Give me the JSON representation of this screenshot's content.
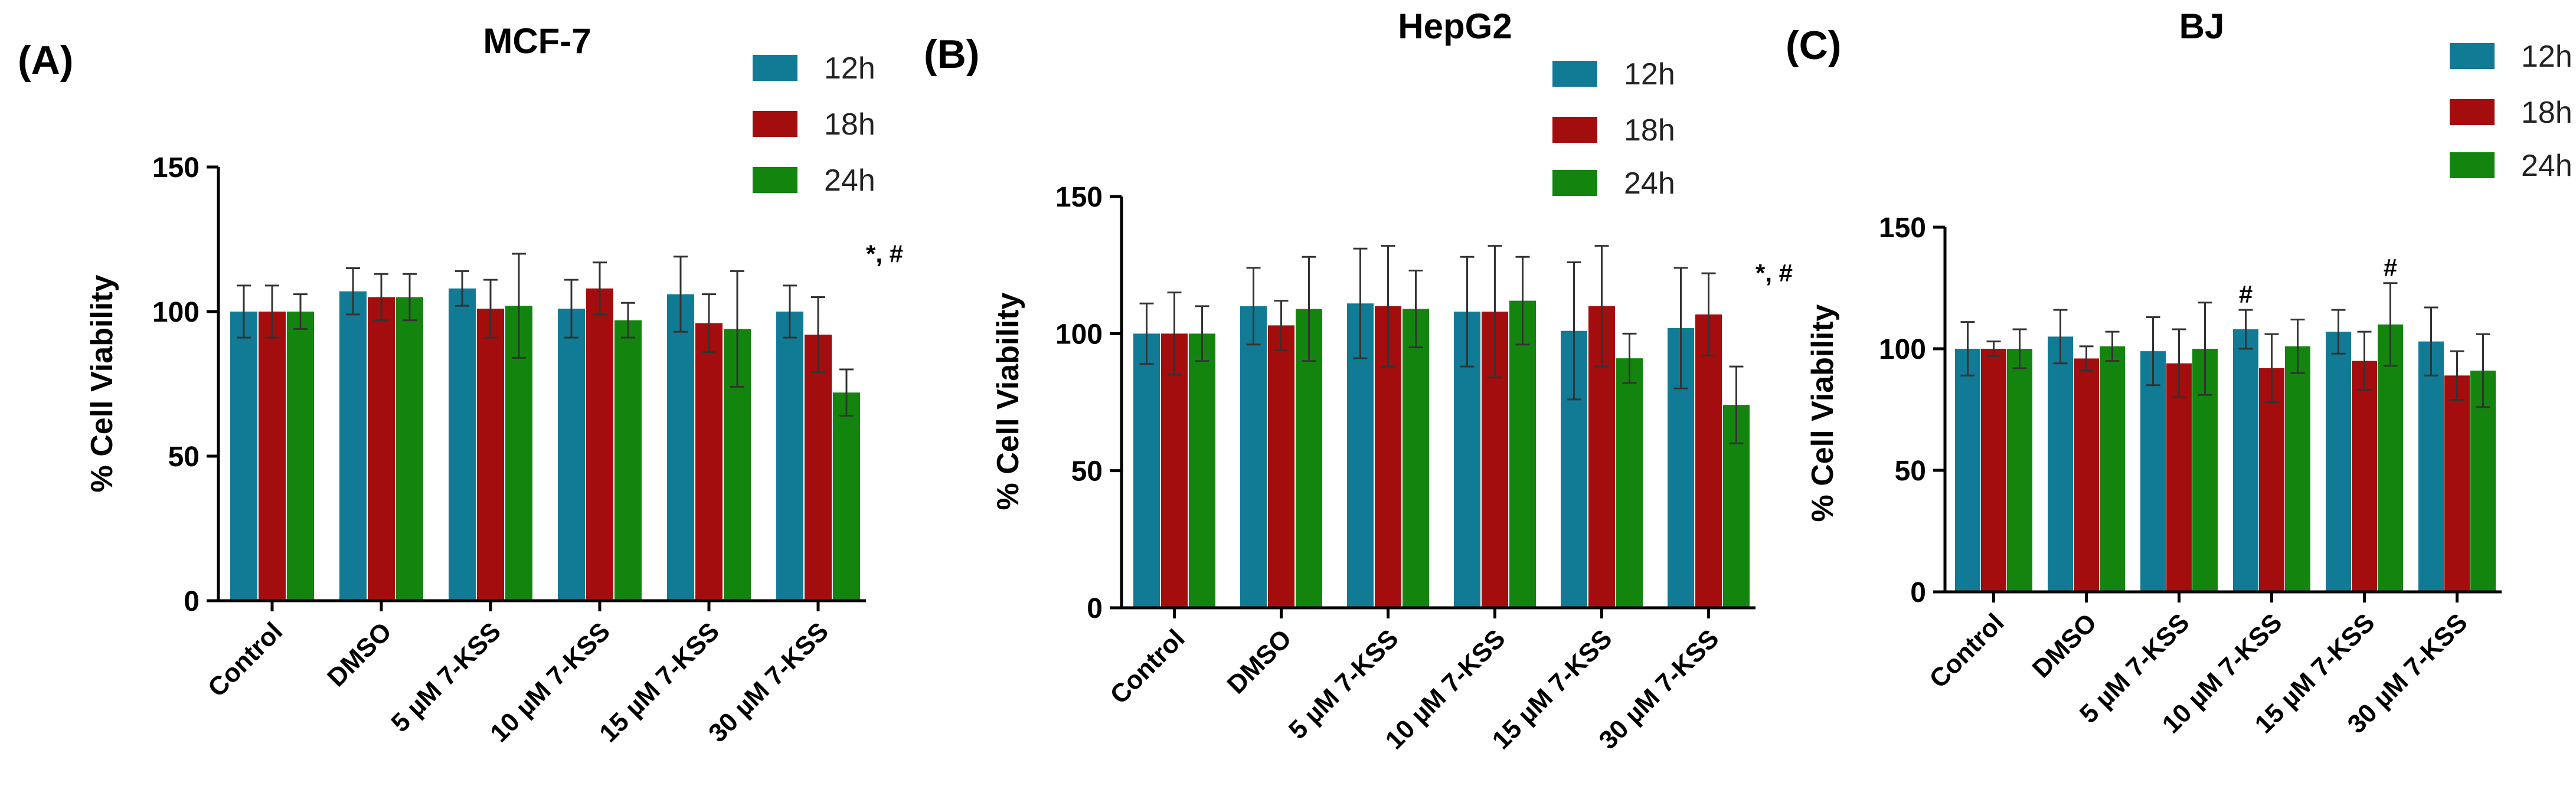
{
  "figure": {
    "series_colors": {
      "12h": "#117a95",
      "18h": "#a30d0d",
      "24h": "#13850f"
    },
    "axis_color": "#000000",
    "error_bar_color": "#333333"
  },
  "chart_data": [
    {
      "type": "bar",
      "panel_label": "(A)",
      "title": "MCF-7",
      "xlabel": "",
      "ylabel": "% Cell Viability",
      "ylim": [
        0,
        150
      ],
      "yticks": [
        0,
        50,
        100,
        150
      ],
      "legend": "top-right",
      "categories": [
        "Control",
        "DMSO",
        "5 µM 7-KSS",
        "10 µM 7-KSS",
        "15 µM 7-KSS",
        "30 µM 7-KSS"
      ],
      "series": [
        {
          "name": "12h",
          "values": [
            100,
            107,
            108,
            101,
            106,
            100
          ],
          "errors": [
            9,
            8,
            6,
            10,
            13,
            9
          ]
        },
        {
          "name": "18h",
          "values": [
            100,
            105,
            101,
            108,
            96,
            92
          ],
          "errors": [
            9,
            8,
            10,
            9,
            10,
            13
          ]
        },
        {
          "name": "24h",
          "values": [
            100,
            105,
            102,
            97,
            94,
            72
          ],
          "errors": [
            6,
            8,
            18,
            6,
            20,
            8
          ]
        }
      ],
      "annotations": [
        {
          "category": "30 µM 7-KSS",
          "series": "24h",
          "text": "*, #"
        }
      ]
    },
    {
      "type": "bar",
      "panel_label": "(B)",
      "title": "HepG2",
      "xlabel": "",
      "ylabel": "% Cell Viability",
      "ylim": [
        0,
        150
      ],
      "yticks": [
        0,
        50,
        100,
        150
      ],
      "legend": "top-right",
      "categories": [
        "Control",
        "DMSO",
        "5 µM 7-KSS",
        "10 µM 7-KSS",
        "15 µM 7-KSS",
        "30 µM 7-KSS"
      ],
      "series": [
        {
          "name": "12h",
          "values": [
            100,
            110,
            111,
            108,
            101,
            102
          ],
          "errors": [
            11,
            14,
            20,
            20,
            25,
            22
          ]
        },
        {
          "name": "18h",
          "values": [
            100,
            103,
            110,
            108,
            110,
            107
          ],
          "errors": [
            15,
            9,
            22,
            24,
            22,
            15
          ]
        },
        {
          "name": "24h",
          "values": [
            100,
            109,
            109,
            112,
            91,
            74
          ],
          "errors": [
            10,
            19,
            14,
            16,
            9,
            14
          ]
        }
      ],
      "annotations": [
        {
          "category": "30 µM 7-KSS",
          "series": "24h",
          "text": "*, #"
        }
      ]
    },
    {
      "type": "bar",
      "panel_label": "(C)",
      "title": "BJ",
      "xlabel": "",
      "ylabel": "% Cell Viability",
      "ylim": [
        0,
        150
      ],
      "yticks": [
        0,
        50,
        100,
        150
      ],
      "legend": "top-right",
      "categories": [
        "Control",
        "DMSO",
        "5 µM 7-KSS",
        "10 µM 7-KSS",
        "15 µM 7-KSS",
        "30 µM 7-KSS"
      ],
      "series": [
        {
          "name": "12h",
          "values": [
            100,
            105,
            99,
            108,
            107,
            103
          ],
          "errors": [
            11,
            11,
            14,
            8,
            9,
            14
          ]
        },
        {
          "name": "18h",
          "values": [
            100,
            96,
            94,
            92,
            95,
            89
          ],
          "errors": [
            3,
            5,
            14,
            14,
            12,
            10
          ]
        },
        {
          "name": "24h",
          "values": [
            100,
            101,
            100,
            101,
            110,
            91
          ],
          "errors": [
            8,
            6,
            19,
            11,
            17,
            15
          ]
        }
      ],
      "annotations": [
        {
          "category": "10 µM 7-KSS",
          "series": "12h",
          "text": "#"
        },
        {
          "category": "15 µM 7-KSS",
          "series": "24h",
          "text": "#"
        }
      ]
    }
  ]
}
